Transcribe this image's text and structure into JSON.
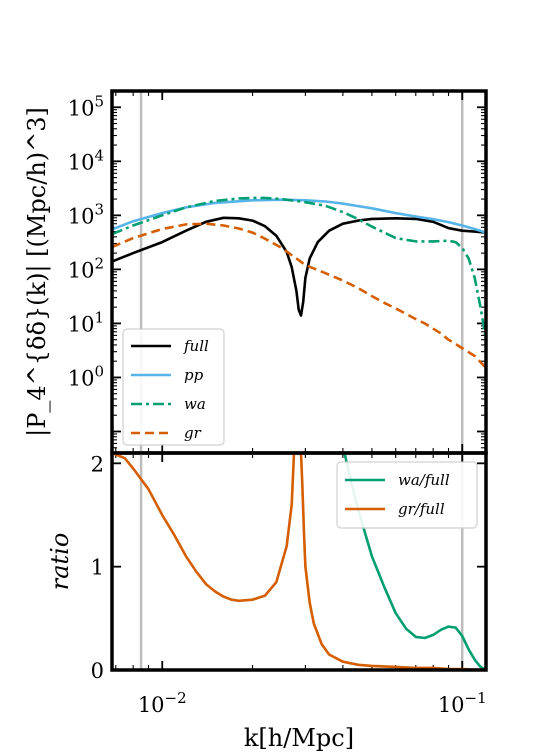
{
  "chart_data": [
    {
      "type": "line",
      "ylabel": "|P_4^{δδ}(k)| [(Mpc/h)^3]",
      "yscale": "log",
      "xscale": "log",
      "xlim": [
        0.0068,
        0.12
      ],
      "ylim": [
        0.04,
        200000
      ],
      "yticks": [
        {
          "value": 1,
          "label": "10",
          "exp": "0"
        },
        {
          "value": 10,
          "label": "10",
          "exp": "1"
        },
        {
          "value": 100,
          "label": "10",
          "exp": "2"
        },
        {
          "value": 1000,
          "label": "10",
          "exp": "3"
        },
        {
          "value": 10000,
          "label": "10",
          "exp": "4"
        },
        {
          "value": 100000,
          "label": "10",
          "exp": "5"
        }
      ],
      "vlines": [
        0.0085,
        0.1
      ],
      "legend_location": "lower-left",
      "series": [
        {
          "name": "full",
          "color": "#000000",
          "style": "solid",
          "x": [
            0.0068,
            0.008,
            0.01,
            0.012,
            0.014,
            0.016,
            0.018,
            0.02,
            0.022,
            0.024,
            0.026,
            0.027,
            0.028,
            0.0285,
            0.029,
            0.0295,
            0.03,
            0.031,
            0.033,
            0.036,
            0.04,
            0.045,
            0.05,
            0.06,
            0.07,
            0.08,
            0.09,
            0.1,
            0.11,
            0.12
          ],
          "y": [
            140,
            200,
            320,
            520,
            760,
            900,
            880,
            800,
            630,
            420,
            210,
            110,
            40,
            18,
            14,
            25,
            70,
            160,
            320,
            520,
            700,
            800,
            860,
            880,
            860,
            760,
            580,
            520,
            500,
            480
          ]
        },
        {
          "name": "pp",
          "color": "#56B4E9",
          "style": "solid",
          "x": [
            0.0068,
            0.008,
            0.01,
            0.012,
            0.015,
            0.02,
            0.025,
            0.03,
            0.035,
            0.04,
            0.05,
            0.06,
            0.07,
            0.08,
            0.09,
            0.1,
            0.11,
            0.12
          ],
          "y": [
            550,
            780,
            1100,
            1400,
            1700,
            1900,
            1950,
            1900,
            1800,
            1650,
            1350,
            1100,
            950,
            850,
            750,
            650,
            560,
            480
          ]
        },
        {
          "name": "wa",
          "color": "#009E73",
          "style": "dashdot",
          "x": [
            0.0068,
            0.008,
            0.01,
            0.012,
            0.015,
            0.018,
            0.02,
            0.022,
            0.025,
            0.028,
            0.03,
            0.035,
            0.04,
            0.045,
            0.05,
            0.06,
            0.07,
            0.08,
            0.09,
            0.095,
            0.1,
            0.105,
            0.11,
            0.115,
            0.12
          ],
          "y": [
            450,
            650,
            1000,
            1400,
            1850,
            2050,
            2100,
            2100,
            2000,
            1850,
            1750,
            1500,
            1150,
            850,
            620,
            380,
            330,
            330,
            340,
            320,
            250,
            160,
            70,
            20,
            5
          ]
        },
        {
          "name": "gr",
          "color": "#D55E00",
          "style": "dashed",
          "x": [
            0.0068,
            0.008,
            0.01,
            0.012,
            0.014,
            0.016,
            0.018,
            0.02,
            0.022,
            0.025,
            0.028,
            0.03,
            0.035,
            0.04,
            0.045,
            0.05,
            0.055,
            0.06,
            0.065,
            0.07,
            0.075,
            0.08,
            0.085,
            0.09,
            0.1,
            0.11,
            0.12
          ],
          "y": [
            260,
            380,
            560,
            680,
            700,
            650,
            570,
            480,
            370,
            250,
            160,
            120,
            85,
            62,
            45,
            32,
            24,
            19,
            15,
            12,
            10,
            8,
            6.5,
            5,
            3.5,
            2.5,
            1.5
          ]
        }
      ]
    },
    {
      "type": "line",
      "xlabel": "k[h/Mpc]",
      "ylabel": "ratio",
      "xscale": "log",
      "xlim": [
        0.0068,
        0.12
      ],
      "ylim": [
        0,
        2.1
      ],
      "yticks": [
        {
          "value": 0,
          "label": "0"
        },
        {
          "value": 1,
          "label": "1"
        },
        {
          "value": 2,
          "label": "2"
        }
      ],
      "xticks": [
        {
          "value": 0.01,
          "label": "10",
          "exp": "−2"
        },
        {
          "value": 0.1,
          "label": "10",
          "exp": "−1"
        }
      ],
      "vlines": [
        0.0085,
        0.1
      ],
      "legend_location": "upper-right",
      "series": [
        {
          "name": "wa/full",
          "color": "#009E73",
          "style": "solid",
          "x": [
            0.0405,
            0.042,
            0.045,
            0.05,
            0.055,
            0.06,
            0.065,
            0.07,
            0.075,
            0.08,
            0.085,
            0.09,
            0.095,
            0.1,
            0.105,
            0.11,
            0.115,
            0.12
          ],
          "y": [
            2.1,
            1.9,
            1.55,
            1.1,
            0.8,
            0.55,
            0.4,
            0.32,
            0.31,
            0.34,
            0.39,
            0.42,
            0.41,
            0.33,
            0.2,
            0.1,
            0.03,
            0.0
          ]
        },
        {
          "name": "gr/full",
          "color": "#D55E00",
          "style": "solid",
          "x": [
            0.0068,
            0.0075,
            0.008,
            0.009,
            0.01,
            0.011,
            0.012,
            0.013,
            0.014,
            0.015,
            0.016,
            0.017,
            0.018,
            0.02,
            0.022,
            0.024,
            0.026,
            0.027,
            0.0275,
            0.028,
            0.0285,
            0.029,
            0.0293,
            0.0297,
            0.03,
            0.031,
            0.032,
            0.034,
            0.036,
            0.04,
            0.045,
            0.05,
            0.06,
            0.07,
            0.08,
            0.09,
            0.1,
            0.12
          ],
          "y": [
            2.1,
            2.05,
            1.95,
            1.75,
            1.5,
            1.3,
            1.1,
            0.95,
            0.83,
            0.76,
            0.71,
            0.68,
            0.67,
            0.68,
            0.72,
            0.85,
            1.2,
            1.6,
            2.1,
            2.1,
            2.1,
            2.1,
            1.8,
            1.3,
            1.0,
            0.65,
            0.45,
            0.25,
            0.15,
            0.08,
            0.05,
            0.04,
            0.03,
            0.02,
            0.02,
            0.01,
            0.01,
            0.0
          ]
        }
      ]
    }
  ]
}
